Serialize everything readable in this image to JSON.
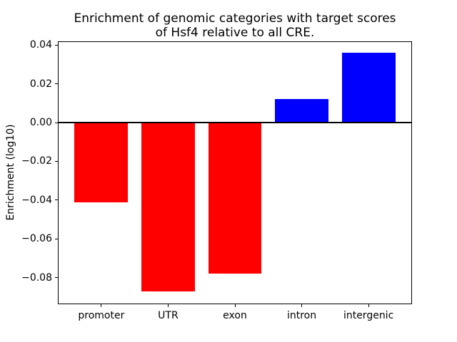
{
  "chart_data": {
    "type": "bar",
    "title": "Enrichment of genomic categories with target scores\nof Hsf4 relative to all CRE.",
    "ylabel": "Enrichment (log10)",
    "xlabel": "",
    "categories": [
      "promoter",
      "UTR",
      "exon",
      "intron",
      "intergenic"
    ],
    "values": [
      -0.041,
      -0.087,
      -0.078,
      0.012,
      0.036
    ],
    "bar_colors": [
      "#ff0000",
      "#ff0000",
      "#ff0000",
      "#0000ff",
      "#0000ff"
    ],
    "negative_color": "#ff0000",
    "positive_color": "#0000ff",
    "yticks": [
      0.04,
      0.02,
      0.0,
      -0.02,
      -0.04,
      -0.06,
      -0.08
    ],
    "ytick_labels": [
      "0.04",
      "0.02",
      "0.00",
      "−0.02",
      "−0.04",
      "−0.06",
      "−0.08"
    ],
    "ylim": [
      -0.0934,
      0.0416
    ],
    "xlim": [
      -0.64,
      4.64
    ],
    "bar_width": 0.8,
    "zero_line": true,
    "grid": false,
    "legend": null
  }
}
